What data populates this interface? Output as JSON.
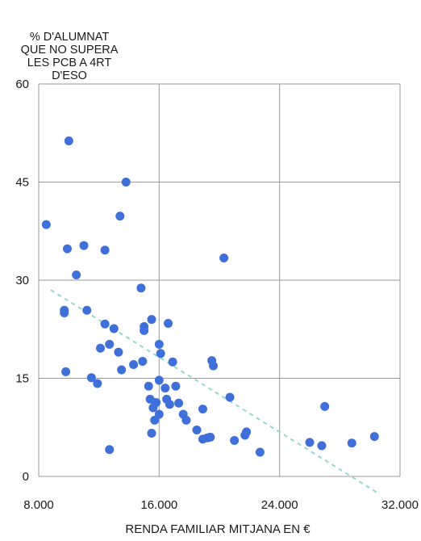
{
  "chart_data": {
    "type": "scatter",
    "title": "",
    "ylabel_lines": [
      "% D'ALUMNAT",
      "QUE NO SUPERA",
      "LES PCB A 4RT",
      "D'ESO"
    ],
    "xlabel": "RENDA FAMILIAR MITJANA EN €",
    "xlim": [
      8000,
      32000
    ],
    "ylim": [
      0,
      60
    ],
    "x_ticks": [
      8000,
      16000,
      24000,
      32000
    ],
    "x_tick_labels": [
      "8.000",
      "16.000",
      "24.000",
      "32.000"
    ],
    "y_ticks": [
      0,
      15,
      30,
      45,
      60
    ],
    "y_tick_labels": [
      "0",
      "15",
      "30",
      "45",
      "60"
    ],
    "grid": true,
    "point_color": "#3f6fd8",
    "trend_color": "#8fd8cc",
    "trendline": {
      "x": [
        8800,
        30500
      ],
      "y": [
        28.5,
        -2.5
      ]
    },
    "points": [
      {
        "x": 10000,
        "y": 51.3
      },
      {
        "x": 13800,
        "y": 45.0
      },
      {
        "x": 8500,
        "y": 38.5
      },
      {
        "x": 13400,
        "y": 39.8
      },
      {
        "x": 9900,
        "y": 34.8
      },
      {
        "x": 11000,
        "y": 35.3
      },
      {
        "x": 12400,
        "y": 34.6
      },
      {
        "x": 20300,
        "y": 33.4
      },
      {
        "x": 10500,
        "y": 30.8
      },
      {
        "x": 14800,
        "y": 28.8
      },
      {
        "x": 9700,
        "y": 25.4
      },
      {
        "x": 9700,
        "y": 25.0
      },
      {
        "x": 11200,
        "y": 25.4
      },
      {
        "x": 12400,
        "y": 23.3
      },
      {
        "x": 13000,
        "y": 22.6
      },
      {
        "x": 15000,
        "y": 22.9
      },
      {
        "x": 15000,
        "y": 22.3
      },
      {
        "x": 15500,
        "y": 24.0
      },
      {
        "x": 16600,
        "y": 23.4
      },
      {
        "x": 12100,
        "y": 19.6
      },
      {
        "x": 12700,
        "y": 20.2
      },
      {
        "x": 13300,
        "y": 19.0
      },
      {
        "x": 16000,
        "y": 20.2
      },
      {
        "x": 16100,
        "y": 18.8
      },
      {
        "x": 14900,
        "y": 17.6
      },
      {
        "x": 14300,
        "y": 17.1
      },
      {
        "x": 16900,
        "y": 17.5
      },
      {
        "x": 19500,
        "y": 17.7
      },
      {
        "x": 19600,
        "y": 16.9
      },
      {
        "x": 13500,
        "y": 16.3
      },
      {
        "x": 9800,
        "y": 16.0
      },
      {
        "x": 11500,
        "y": 15.1
      },
      {
        "x": 11900,
        "y": 14.2
      },
      {
        "x": 16000,
        "y": 14.7
      },
      {
        "x": 15300,
        "y": 13.8
      },
      {
        "x": 16400,
        "y": 13.5
      },
      {
        "x": 17100,
        "y": 13.8
      },
      {
        "x": 15400,
        "y": 11.8
      },
      {
        "x": 15800,
        "y": 11.3
      },
      {
        "x": 16500,
        "y": 11.8
      },
      {
        "x": 16700,
        "y": 11.0
      },
      {
        "x": 17300,
        "y": 11.2
      },
      {
        "x": 20700,
        "y": 12.1
      },
      {
        "x": 15600,
        "y": 10.5
      },
      {
        "x": 16000,
        "y": 9.5
      },
      {
        "x": 17600,
        "y": 9.5
      },
      {
        "x": 17800,
        "y": 8.6
      },
      {
        "x": 15700,
        "y": 8.6
      },
      {
        "x": 18900,
        "y": 10.3
      },
      {
        "x": 18500,
        "y": 7.1
      },
      {
        "x": 15500,
        "y": 6.6
      },
      {
        "x": 18900,
        "y": 5.7
      },
      {
        "x": 19200,
        "y": 5.9
      },
      {
        "x": 19400,
        "y": 6.0
      },
      {
        "x": 21000,
        "y": 5.5
      },
      {
        "x": 21700,
        "y": 6.3
      },
      {
        "x": 21800,
        "y": 6.8
      },
      {
        "x": 12700,
        "y": 4.1
      },
      {
        "x": 22700,
        "y": 3.7
      },
      {
        "x": 26000,
        "y": 5.2
      },
      {
        "x": 26800,
        "y": 4.7
      },
      {
        "x": 27000,
        "y": 10.7
      },
      {
        "x": 28800,
        "y": 5.1
      },
      {
        "x": 30300,
        "y": 6.1
      }
    ]
  }
}
